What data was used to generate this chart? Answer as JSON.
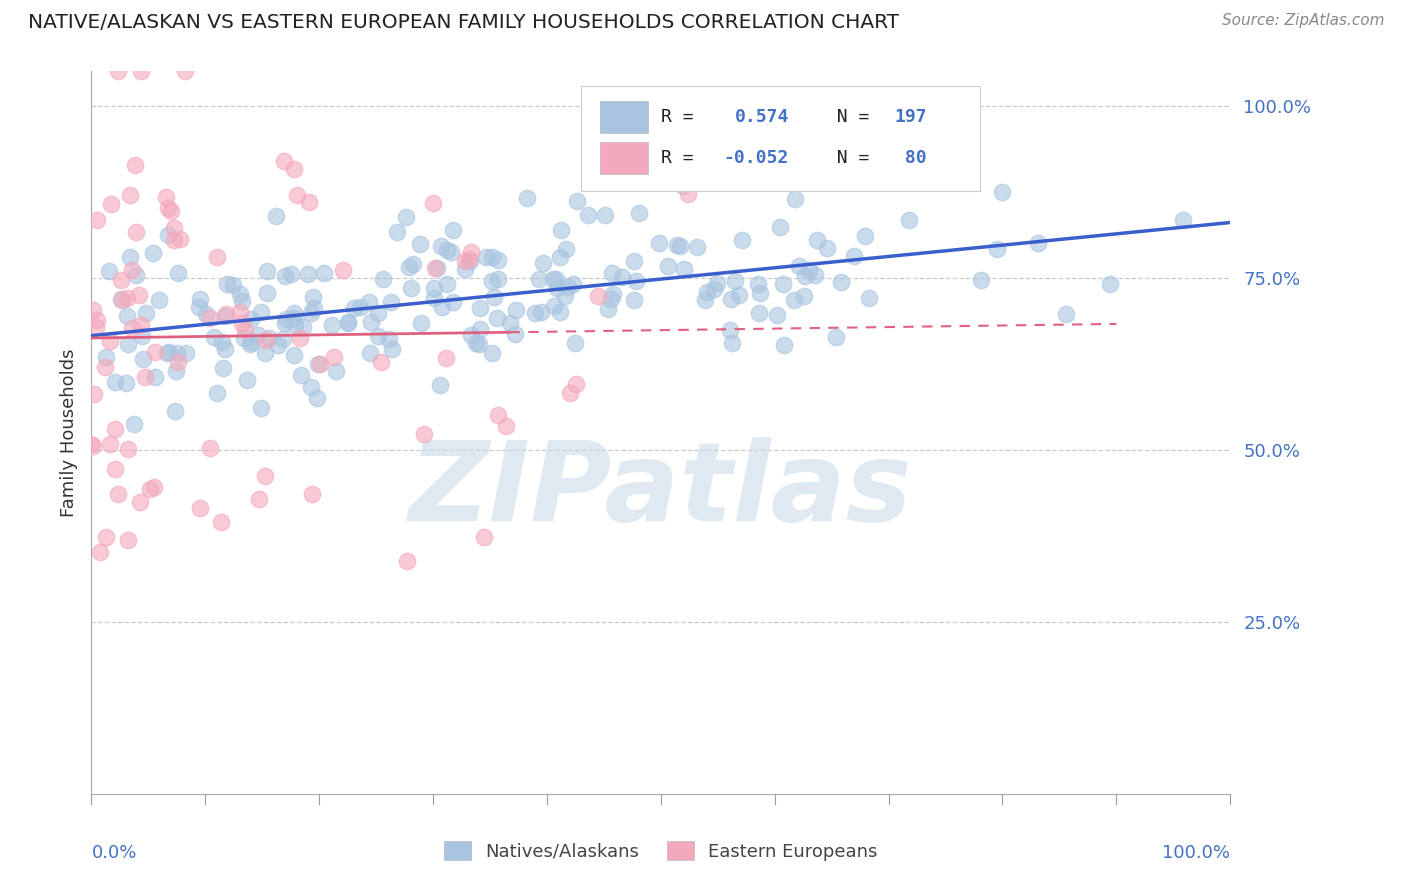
{
  "title": "NATIVE/ALASKAN VS EASTERN EUROPEAN FAMILY HOUSEHOLDS CORRELATION CHART",
  "source": "Source: ZipAtlas.com",
  "ylabel": "Family Households",
  "ytick_labels": [
    "25.0%",
    "50.0%",
    "75.0%",
    "100.0%"
  ],
  "ytick_values": [
    0.25,
    0.5,
    0.75,
    1.0
  ],
  "legend_label1": "Natives/Alaskans",
  "legend_label2": "Eastern Europeans",
  "legend_r1": "R =  0.574",
  "legend_n1": "N = 197",
  "legend_r2": "R = -0.052",
  "legend_n2": "N =  80",
  "color_blue": "#a8c4e0",
  "color_pink": "#f4a8bb",
  "color_blue_line": "#3a5fcd",
  "color_pink_line": "#e06080",
  "watermark": "ZIPatlas",
  "watermark_color": "#c8d8e8",
  "background_color": "#ffffff",
  "grid_color": "#cccccc",
  "N_blue": 197,
  "N_pink": 80,
  "xmin": 0.0,
  "xmax": 1.0,
  "ymin": 0.0,
  "ymax": 1.05
}
